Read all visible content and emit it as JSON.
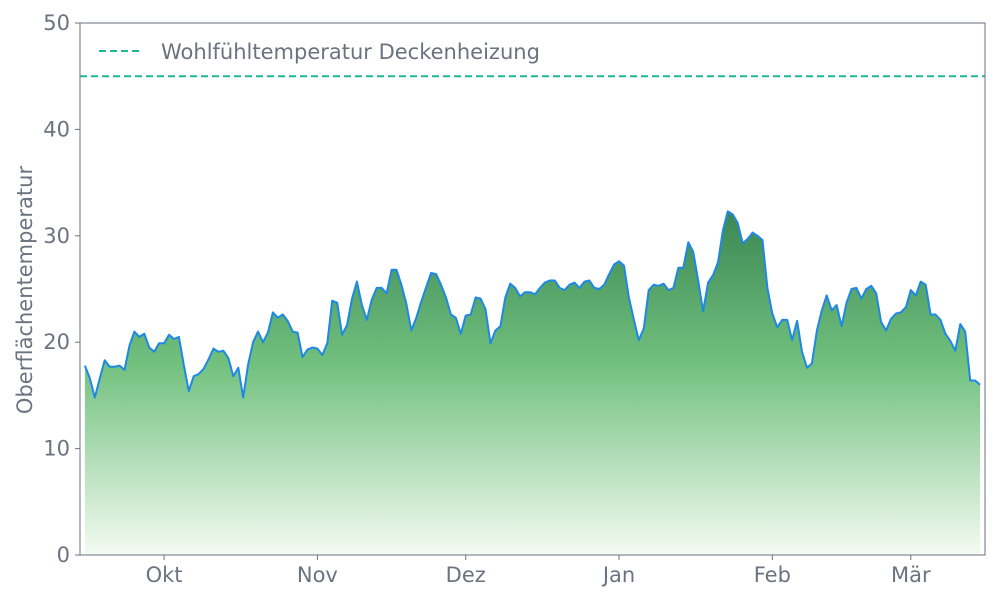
{
  "chart_data": {
    "type": "area",
    "title": "",
    "xlabel": "",
    "ylabel": "Oberflächentemperatur",
    "ylim": [
      0,
      50
    ],
    "yticks": [
      0,
      10,
      20,
      30,
      40,
      50
    ],
    "xlim": [
      "09-14",
      "03-16"
    ],
    "xticks": [
      {
        "date": "10-01",
        "label": "Okt"
      },
      {
        "date": "11-01",
        "label": "Nov"
      },
      {
        "date": "12-01",
        "label": "Dez"
      },
      {
        "date": "01-01",
        "label": "Jan"
      },
      {
        "date": "02-01",
        "label": "Feb"
      },
      {
        "date": "03-01",
        "label": "Mär"
      }
    ],
    "grid": false,
    "legend_placement": "top-left",
    "reference_line": {
      "name": "Wohlfühltemperatur Deckenheizung",
      "y": 45,
      "color": "#1db992",
      "style": "dashed"
    },
    "series": [
      {
        "color": "#1e88e5",
        "fill_gradient": [
          "#3a8753",
          "#72c17f",
          "#f4fbf2"
        ],
        "x": [
          "09-15",
          "09-16",
          "09-17",
          "09-18",
          "09-19",
          "09-20",
          "09-21",
          "09-22",
          "09-23",
          "09-24",
          "09-25",
          "09-26",
          "09-27",
          "09-28",
          "09-29",
          "09-30",
          "10-01",
          "10-02",
          "10-03",
          "10-04",
          "10-05",
          "10-06",
          "10-07",
          "10-08",
          "10-09",
          "10-10",
          "10-11",
          "10-12",
          "10-13",
          "10-14",
          "10-15",
          "10-16",
          "10-17",
          "10-18",
          "10-19",
          "10-20",
          "10-21",
          "10-22",
          "10-23",
          "10-24",
          "10-25",
          "10-26",
          "10-27",
          "10-28",
          "10-29",
          "10-30",
          "10-31",
          "11-01",
          "11-02",
          "11-03",
          "11-04",
          "11-05",
          "11-06",
          "11-07",
          "11-08",
          "11-09",
          "11-10",
          "11-11",
          "11-12",
          "11-13",
          "11-14",
          "11-15",
          "11-16",
          "11-17",
          "11-18",
          "11-19",
          "11-20",
          "11-21",
          "11-22",
          "11-23",
          "11-24",
          "11-25",
          "11-26",
          "11-27",
          "11-28",
          "11-29",
          "11-30",
          "12-01",
          "12-02",
          "12-03",
          "12-04",
          "12-05",
          "12-06",
          "12-07",
          "12-08",
          "12-09",
          "12-10",
          "12-11",
          "12-12",
          "12-13",
          "12-14",
          "12-15",
          "12-16",
          "12-17",
          "12-18",
          "12-19",
          "12-20",
          "12-21",
          "12-22",
          "12-23",
          "12-24",
          "12-25",
          "12-26",
          "12-27",
          "12-28",
          "12-29",
          "12-30",
          "12-31",
          "01-01",
          "01-02",
          "01-03",
          "01-04",
          "01-05",
          "01-06",
          "01-07",
          "01-08",
          "01-09",
          "01-10",
          "01-11",
          "01-12",
          "01-13",
          "01-14",
          "01-15",
          "01-16",
          "01-17",
          "01-18",
          "01-19",
          "01-20",
          "01-21",
          "01-22",
          "01-23",
          "01-24",
          "01-25",
          "01-26",
          "01-27",
          "01-28",
          "01-29",
          "01-30",
          "01-31",
          "02-01",
          "02-02",
          "02-03",
          "02-04",
          "02-05",
          "02-06",
          "02-07",
          "02-08",
          "02-09",
          "02-10",
          "02-11",
          "02-12",
          "02-13",
          "02-14",
          "02-15",
          "02-16",
          "02-17",
          "02-18",
          "02-19",
          "02-20",
          "02-21",
          "02-22",
          "02-23",
          "02-24",
          "02-25",
          "02-26",
          "02-27",
          "02-28",
          "03-01",
          "03-02",
          "03-03",
          "03-04",
          "03-05",
          "03-06",
          "03-07",
          "03-08",
          "03-09",
          "03-10",
          "03-11",
          "03-12",
          "03-13",
          "03-14",
          "03-15"
        ],
        "values": [
          17.8,
          16.6,
          14.8,
          16.6,
          18.3,
          17.7,
          17.7,
          17.8,
          17.4,
          19.7,
          21.0,
          20.5,
          20.8,
          19.5,
          19.1,
          19.9,
          19.9,
          20.7,
          20.3,
          20.5,
          17.8,
          15.4,
          16.8,
          17.0,
          17.5,
          18.4,
          19.4,
          19.1,
          19.2,
          18.5,
          16.8,
          17.6,
          14.8,
          17.9,
          20.0,
          21.0,
          20.0,
          20.9,
          22.8,
          22.3,
          22.6,
          22.0,
          21.0,
          20.9,
          18.6,
          19.3,
          19.5,
          19.4,
          18.8,
          19.9,
          23.9,
          23.7,
          20.7,
          21.6,
          24.1,
          25.7,
          23.5,
          22.1,
          24.0,
          25.1,
          25.1,
          24.6,
          26.8,
          26.8,
          25.4,
          23.6,
          21.1,
          22.3,
          23.8,
          25.2,
          26.5,
          26.4,
          25.4,
          24.2,
          22.6,
          22.3,
          20.8,
          22.5,
          22.6,
          24.2,
          24.1,
          23.1,
          19.9,
          21.1,
          21.5,
          24.2,
          25.5,
          25.1,
          24.3,
          24.7,
          24.7,
          24.5,
          25.1,
          25.6,
          25.8,
          25.8,
          25.1,
          24.9,
          25.4,
          25.6,
          25.1,
          25.7,
          25.8,
          25.1,
          25.0,
          25.4,
          26.4,
          27.3,
          27.6,
          27.2,
          24.2,
          22.1,
          20.2,
          21.3,
          24.9,
          25.4,
          25.3,
          25.5,
          24.9,
          25.1,
          27.0,
          27.0,
          29.4,
          28.5,
          25.8,
          22.9,
          25.6,
          26.3,
          27.5,
          30.5,
          32.3,
          32.0,
          31.2,
          29.3,
          29.7,
          30.3,
          30.0,
          29.6,
          25.1,
          22.7,
          21.4,
          22.1,
          22.1,
          20.2,
          22.0,
          19.1,
          17.6,
          18.0,
          21.1,
          23.0,
          24.4,
          23.0,
          23.5,
          21.5,
          23.7,
          25.0,
          25.1,
          24.1,
          25.0,
          25.3,
          24.6,
          21.9,
          21.1,
          22.2,
          22.7,
          22.8,
          23.3,
          24.9,
          24.4,
          25.7,
          25.4,
          22.6,
          22.6,
          22.1,
          20.8,
          20.1,
          19.2,
          21.7,
          21.0,
          16.4,
          16.4,
          16.0
        ]
      }
    ]
  }
}
